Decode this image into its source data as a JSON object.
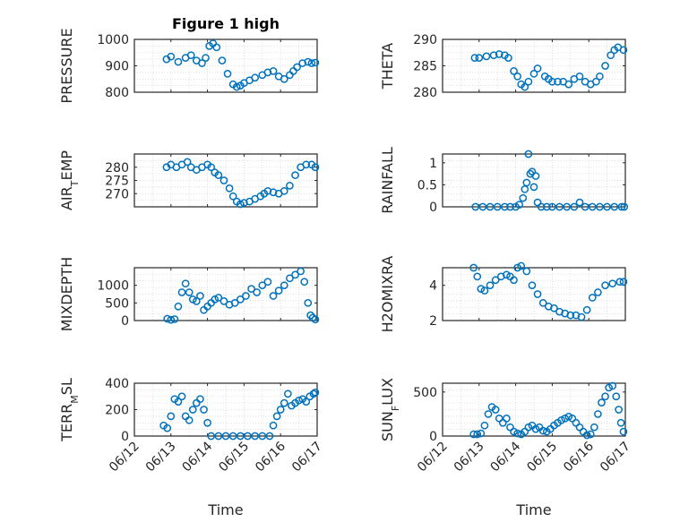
{
  "figure": {
    "title": "Figure 1 high",
    "marker_color": "#0072BD",
    "axes_color": "#262626",
    "grid_color": "#d6d6d6"
  },
  "chart_data": [
    {
      "type": "scatter",
      "title": "Figure 1 high",
      "ylabel": "PRESSURE",
      "ylim": [
        800,
        1000
      ],
      "yticks": [
        800,
        900,
        1000
      ],
      "ytick_labels": [
        "800",
        "900",
        "1000"
      ],
      "xlim": [
        0,
        5
      ],
      "xticks": [],
      "xtick_labels": [],
      "xlabel": "",
      "grid": "dotted",
      "x": [
        0.88,
        1.0,
        1.2,
        1.4,
        1.55,
        1.7,
        1.85,
        1.95,
        2.05,
        2.15,
        2.25,
        2.4,
        2.55,
        2.7,
        2.8,
        2.9,
        3.0,
        3.15,
        3.3,
        3.5,
        3.65,
        3.8,
        3.95,
        4.1,
        4.25,
        4.35,
        4.45,
        4.6,
        4.75,
        4.85,
        4.95
      ],
      "y": [
        925,
        935,
        915,
        930,
        940,
        920,
        910,
        930,
        975,
        985,
        970,
        920,
        870,
        830,
        820,
        825,
        835,
        845,
        855,
        865,
        875,
        880,
        860,
        850,
        865,
        880,
        895,
        910,
        915,
        910,
        912
      ]
    },
    {
      "type": "scatter",
      "title": "",
      "ylabel": "THETA",
      "ylim": [
        280,
        290
      ],
      "yticks": [
        280,
        285,
        290
      ],
      "ytick_labels": [
        "280",
        "285",
        "290"
      ],
      "xlim": [
        0,
        5
      ],
      "xticks": [],
      "xtick_labels": [],
      "xlabel": "",
      "grid": "dotted",
      "x": [
        0.88,
        1.0,
        1.2,
        1.4,
        1.55,
        1.7,
        1.8,
        1.95,
        2.05,
        2.15,
        2.25,
        2.35,
        2.5,
        2.6,
        2.8,
        2.9,
        3.0,
        3.15,
        3.3,
        3.45,
        3.6,
        3.75,
        3.9,
        4.05,
        4.2,
        4.3,
        4.45,
        4.6,
        4.7,
        4.8,
        4.95
      ],
      "y": [
        286.5,
        286.5,
        286.8,
        287.0,
        287.2,
        287.0,
        286.5,
        284.0,
        283.0,
        281.5,
        281.0,
        282.0,
        283.5,
        284.5,
        283.0,
        282.5,
        282.0,
        282.0,
        282.0,
        281.5,
        282.5,
        283.0,
        282.0,
        281.5,
        282.0,
        283.0,
        285.0,
        287.0,
        288.0,
        288.5,
        288.0
      ]
    },
    {
      "type": "scatter",
      "title": "",
      "ylabel": "AIR_TEMP",
      "ylim": [
        265,
        285
      ],
      "yticks": [
        270,
        275,
        280
      ],
      "ytick_labels": [
        "270",
        "275",
        "280"
      ],
      "xlim": [
        0,
        5
      ],
      "xticks": [],
      "xtick_labels": [],
      "xlabel": "",
      "grid": "dotted",
      "x": [
        0.88,
        1.0,
        1.15,
        1.3,
        1.45,
        1.55,
        1.7,
        1.85,
        2.0,
        2.1,
        2.2,
        2.3,
        2.45,
        2.6,
        2.7,
        2.8,
        2.9,
        3.0,
        3.15,
        3.3,
        3.45,
        3.55,
        3.65,
        3.8,
        3.95,
        4.1,
        4.25,
        4.4,
        4.55,
        4.7,
        4.85,
        4.95
      ],
      "y": [
        280,
        281,
        280,
        281,
        282,
        280,
        279,
        280,
        281,
        280,
        278,
        277,
        275,
        272,
        269,
        267,
        266,
        266.5,
        267,
        268,
        269,
        270,
        271,
        270.5,
        270,
        271,
        273,
        277,
        280,
        281,
        281,
        280
      ]
    },
    {
      "type": "scatter",
      "title": "",
      "ylabel": "RAINFALL",
      "ylim": [
        0,
        1.2
      ],
      "yticks": [
        0,
        0.5,
        1
      ],
      "ytick_labels": [
        "0",
        "0.5",
        "1"
      ],
      "xlim": [
        0,
        5
      ],
      "xticks": [],
      "xtick_labels": [],
      "xlabel": "",
      "grid": "dotted",
      "x": [
        0.9,
        1.1,
        1.3,
        1.5,
        1.7,
        1.85,
        2.0,
        2.1,
        2.2,
        2.25,
        2.3,
        2.35,
        2.4,
        2.45,
        2.5,
        2.55,
        2.6,
        2.7,
        2.85,
        3.0,
        3.2,
        3.4,
        3.6,
        3.75,
        3.9,
        4.1,
        4.3,
        4.5,
        4.7,
        4.9,
        4.97
      ],
      "y": [
        0,
        0,
        0,
        0,
        0,
        0,
        0,
        0.05,
        0.2,
        0.4,
        0.55,
        1.2,
        0.75,
        0.8,
        0.45,
        0.7,
        0.1,
        0,
        0,
        0,
        0,
        0,
        0,
        0.1,
        0,
        0,
        0,
        0,
        0,
        0,
        0
      ]
    },
    {
      "type": "scatter",
      "title": "",
      "ylabel": "MIXDEPTH",
      "ylim": [
        0,
        1500
      ],
      "yticks": [
        0,
        500,
        1000
      ],
      "ytick_labels": [
        "0",
        "500",
        "1000"
      ],
      "xlim": [
        0,
        5
      ],
      "xticks": [],
      "xtick_labels": [],
      "xlabel": "",
      "grid": "dotted",
      "x": [
        0.9,
        1.0,
        1.1,
        1.2,
        1.3,
        1.4,
        1.5,
        1.6,
        1.7,
        1.8,
        1.9,
        2.0,
        2.1,
        2.2,
        2.3,
        2.45,
        2.6,
        2.75,
        2.9,
        3.05,
        3.2,
        3.35,
        3.5,
        3.65,
        3.8,
        3.95,
        4.1,
        4.25,
        4.4,
        4.55,
        4.65,
        4.75,
        4.82,
        4.88,
        4.95
      ],
      "y": [
        50,
        20,
        40,
        400,
        800,
        1050,
        800,
        600,
        550,
        700,
        300,
        400,
        500,
        600,
        650,
        550,
        450,
        500,
        600,
        700,
        900,
        800,
        1000,
        1100,
        700,
        850,
        1000,
        1200,
        1300,
        1400,
        1100,
        500,
        150,
        80,
        30
      ]
    },
    {
      "type": "scatter",
      "title": "",
      "ylabel": "H2OMIXRA",
      "ylim": [
        2,
        5
      ],
      "yticks": [
        2,
        4
      ],
      "ytick_labels": [
        "2",
        "4"
      ],
      "xlim": [
        0,
        5
      ],
      "xticks": [],
      "xtick_labels": [],
      "xlabel": "",
      "grid": "dotted",
      "x": [
        0.85,
        0.95,
        1.05,
        1.15,
        1.3,
        1.45,
        1.6,
        1.75,
        1.85,
        1.95,
        2.05,
        2.15,
        2.3,
        2.45,
        2.6,
        2.75,
        2.9,
        3.05,
        3.2,
        3.35,
        3.5,
        3.65,
        3.8,
        3.95,
        4.1,
        4.25,
        4.45,
        4.65,
        4.85,
        4.95
      ],
      "y": [
        5.0,
        4.5,
        3.8,
        3.7,
        4.0,
        4.3,
        4.5,
        4.6,
        4.5,
        4.3,
        5.0,
        5.1,
        4.8,
        4.0,
        3.5,
        3.0,
        2.8,
        2.7,
        2.5,
        2.4,
        2.3,
        2.3,
        2.2,
        2.6,
        3.3,
        3.6,
        4.0,
        4.1,
        4.2,
        4.2
      ]
    },
    {
      "type": "scatter",
      "title": "",
      "ylabel": "TERR_MSL",
      "ylim": [
        0,
        400
      ],
      "yticks": [
        0,
        200,
        400
      ],
      "ytick_labels": [
        "0",
        "200",
        "400"
      ],
      "xlim": [
        0,
        5
      ],
      "xticks": [
        0,
        1,
        2,
        3,
        4,
        5
      ],
      "xtick_labels": [
        "06/12",
        "06/13",
        "06/14",
        "06/15",
        "06/16",
        "06/17"
      ],
      "xlabel": "Time",
      "grid": "dotted",
      "x": [
        0.8,
        0.9,
        1.0,
        1.1,
        1.2,
        1.3,
        1.4,
        1.5,
        1.6,
        1.7,
        1.8,
        1.9,
        2.0,
        2.1,
        2.3,
        2.5,
        2.7,
        2.9,
        3.1,
        3.3,
        3.5,
        3.7,
        3.8,
        3.9,
        4.0,
        4.1,
        4.2,
        4.3,
        4.4,
        4.5,
        4.6,
        4.7,
        4.8,
        4.9,
        4.95
      ],
      "y": [
        80,
        60,
        150,
        280,
        260,
        300,
        150,
        120,
        200,
        250,
        280,
        200,
        100,
        0,
        0,
        0,
        0,
        0,
        0,
        0,
        0,
        0,
        80,
        150,
        200,
        250,
        320,
        230,
        250,
        270,
        280,
        260,
        300,
        320,
        330
      ]
    },
    {
      "type": "scatter",
      "title": "",
      "ylabel": "SUN_FLUX",
      "ylim": [
        0,
        600
      ],
      "yticks": [
        0,
        500
      ],
      "ytick_labels": [
        "0",
        "500"
      ],
      "xlim": [
        0,
        5
      ],
      "xticks": [
        0,
        1,
        2,
        3,
        4,
        5
      ],
      "xtick_labels": [
        "06/12",
        "06/13",
        "06/14",
        "06/15",
        "06/16",
        "06/17"
      ],
      "xlabel": "Time",
      "grid": "dotted",
      "x": [
        0.85,
        0.95,
        1.05,
        1.15,
        1.25,
        1.35,
        1.45,
        1.55,
        1.65,
        1.75,
        1.85,
        1.95,
        2.05,
        2.15,
        2.25,
        2.35,
        2.45,
        2.55,
        2.65,
        2.75,
        2.85,
        2.95,
        3.05,
        3.15,
        3.25,
        3.35,
        3.45,
        3.55,
        3.65,
        3.75,
        3.85,
        3.95,
        4.05,
        4.15,
        4.25,
        4.35,
        4.45,
        4.55,
        4.65,
        4.75,
        4.82,
        4.88,
        4.95
      ],
      "y": [
        20,
        20,
        30,
        120,
        250,
        330,
        300,
        200,
        150,
        200,
        100,
        50,
        30,
        20,
        50,
        100,
        120,
        80,
        100,
        60,
        50,
        80,
        120,
        150,
        180,
        200,
        220,
        200,
        150,
        100,
        50,
        10,
        20,
        100,
        250,
        380,
        450,
        550,
        570,
        450,
        300,
        150,
        50
      ]
    }
  ]
}
